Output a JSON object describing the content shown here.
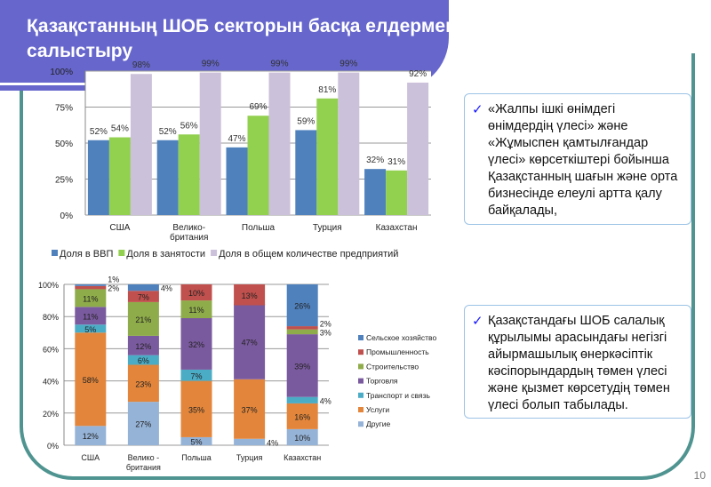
{
  "title": "Қазақстанның ШОБ секторын басқа елдермен салыстыру",
  "page_number": "10",
  "panels": [
    {
      "icon": "checkmark-icon",
      "text": "«Жалпы ішкі өнімдегі өнімдердің үлесі» және «Жұмыспен қамтылғандар үлесі» көрсеткіштері бойынша Қазақстанның шағын және орта бизнесінде елеулі артта қалу байқалады,"
    },
    {
      "icon": "checkmark-icon",
      "text": "Қазақстандағы ШОБ салалық құрылымы арасындағы негізгі айырмашылық өнеркәсіптік кәсіпорындардың төмен үлесі және қызмет көрсетудің төмен үлесі болып табылады."
    }
  ],
  "chart_data": [
    {
      "type": "bar",
      "categories": [
        "США",
        "Велико-британия",
        "Польша",
        "Турция",
        "Казахстан"
      ],
      "category_lines": [
        [
          "США"
        ],
        [
          "Велико-",
          "британия"
        ],
        [
          "Польша"
        ],
        [
          "Турция"
        ],
        [
          "Казахстан"
        ]
      ],
      "series": [
        {
          "name": "Доля в ВВП",
          "values": [
            52,
            52,
            47,
            59,
            32
          ],
          "color": "#4f81bd"
        },
        {
          "name": "Доля в занятости",
          "values": [
            54,
            56,
            69,
            81,
            31
          ],
          "color": "#92d050"
        },
        {
          "name": "Доля в общем количестве предприятий",
          "values": [
            98,
            99,
            99,
            99,
            92
          ],
          "color": "#ccc1da"
        }
      ],
      "ylim": [
        0,
        100
      ],
      "yticks": [
        "0%",
        "25%",
        "50%",
        "75%",
        "100%"
      ],
      "grid": true,
      "legend": "bottom"
    },
    {
      "type": "bar",
      "stacked": true,
      "categories": [
        "США",
        "Велико-британия",
        "Польша",
        "Турция",
        "Казахстан"
      ],
      "category_lines": [
        [
          "США"
        ],
        [
          "Велико -",
          "британия"
        ],
        [
          "Польша"
        ],
        [
          "Турция"
        ],
        [
          "Казахстан"
        ]
      ],
      "series": [
        {
          "name": "Другие",
          "values": [
            12,
            27,
            5,
            4,
            10
          ],
          "color": "#95b3d7"
        },
        {
          "name": "Услуги",
          "values": [
            58,
            23,
            35,
            37,
            16
          ],
          "color": "#e3863b"
        },
        {
          "name": "Транспорт и связь",
          "values": [
            5,
            6,
            7,
            0,
            4
          ],
          "color": "#4bacc6"
        },
        {
          "name": "Торговля",
          "values": [
            11,
            12,
            32,
            47,
            39
          ],
          "color": "#7a5a9e"
        },
        {
          "name": "Строительство",
          "values": [
            11,
            21,
            11,
            0,
            3
          ],
          "color": "#8fac4a"
        },
        {
          "name": "Промышленность",
          "values": [
            2,
            7,
            10,
            13,
            2
          ],
          "color": "#c0504d"
        },
        {
          "name": "Сельское хозяйство",
          "values": [
            1,
            4,
            0,
            0,
            26
          ],
          "color": "#4f81bd"
        }
      ],
      "ylim": [
        0,
        100
      ],
      "yticks": [
        "0%",
        "20%",
        "40%",
        "60%",
        "80%",
        "100%"
      ],
      "grid": true,
      "legend": "right"
    }
  ]
}
